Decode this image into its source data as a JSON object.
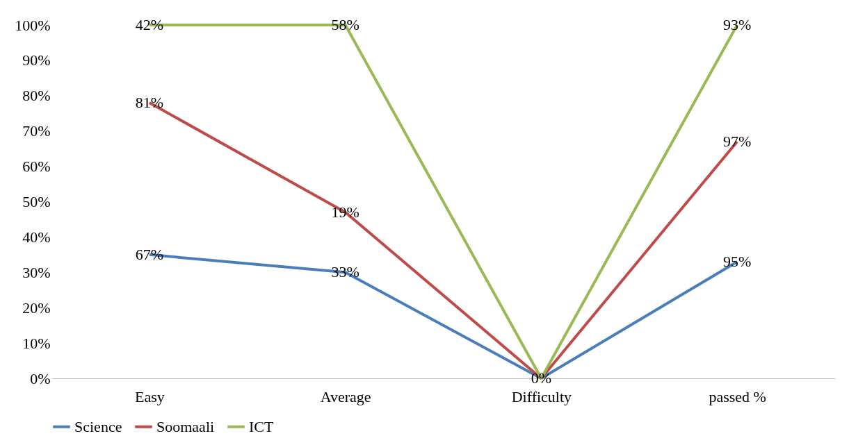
{
  "chart_data": {
    "type": "line",
    "categories": [
      "Easy",
      "Average",
      "Difficulty",
      "passed %"
    ],
    "series": [
      {
        "name": "Science",
        "color": "#4a7ebb",
        "values": [
          35,
          30,
          0,
          33
        ]
      },
      {
        "name": "Soomaali",
        "color": "#be4b48",
        "values": [
          78,
          47,
          0,
          67
        ]
      },
      {
        "name": "ICT",
        "color": "#98b954",
        "values": [
          100,
          100,
          0,
          100
        ]
      }
    ],
    "annotations": [
      {
        "text": "67%",
        "x": "Easy",
        "y": 35
      },
      {
        "text": "33%",
        "x": "Average",
        "y": 30
      },
      {
        "text": "95%",
        "x": "passed %",
        "y": 33
      },
      {
        "text": "81%",
        "x": "Easy",
        "y": 78
      },
      {
        "text": "19%",
        "x": "Average",
        "y": 47
      },
      {
        "text": "97%",
        "x": "passed %",
        "y": 67
      },
      {
        "text": "42%",
        "x": "Easy",
        "y": 100
      },
      {
        "text": "58%",
        "x": "Average",
        "y": 100
      },
      {
        "text": "0%",
        "x": "Difficulty",
        "y": 0
      },
      {
        "text": "93%",
        "x": "passed %",
        "y": 100
      }
    ],
    "ylim": [
      0,
      100
    ],
    "yticks": [
      {
        "value": 0,
        "label": "0%"
      },
      {
        "value": 10,
        "label": "10%"
      },
      {
        "value": 20,
        "label": "20%"
      },
      {
        "value": 30,
        "label": "30%"
      },
      {
        "value": 40,
        "label": "40%"
      },
      {
        "value": 50,
        "label": "50%"
      },
      {
        "value": 60,
        "label": "60%"
      },
      {
        "value": 70,
        "label": "70%"
      },
      {
        "value": 80,
        "label": "80%"
      },
      {
        "value": 90,
        "label": "90%"
      },
      {
        "value": 100,
        "label": "100%"
      }
    ],
    "grid": false,
    "legend": "bottom",
    "marker": "none",
    "line_style": "solid"
  }
}
